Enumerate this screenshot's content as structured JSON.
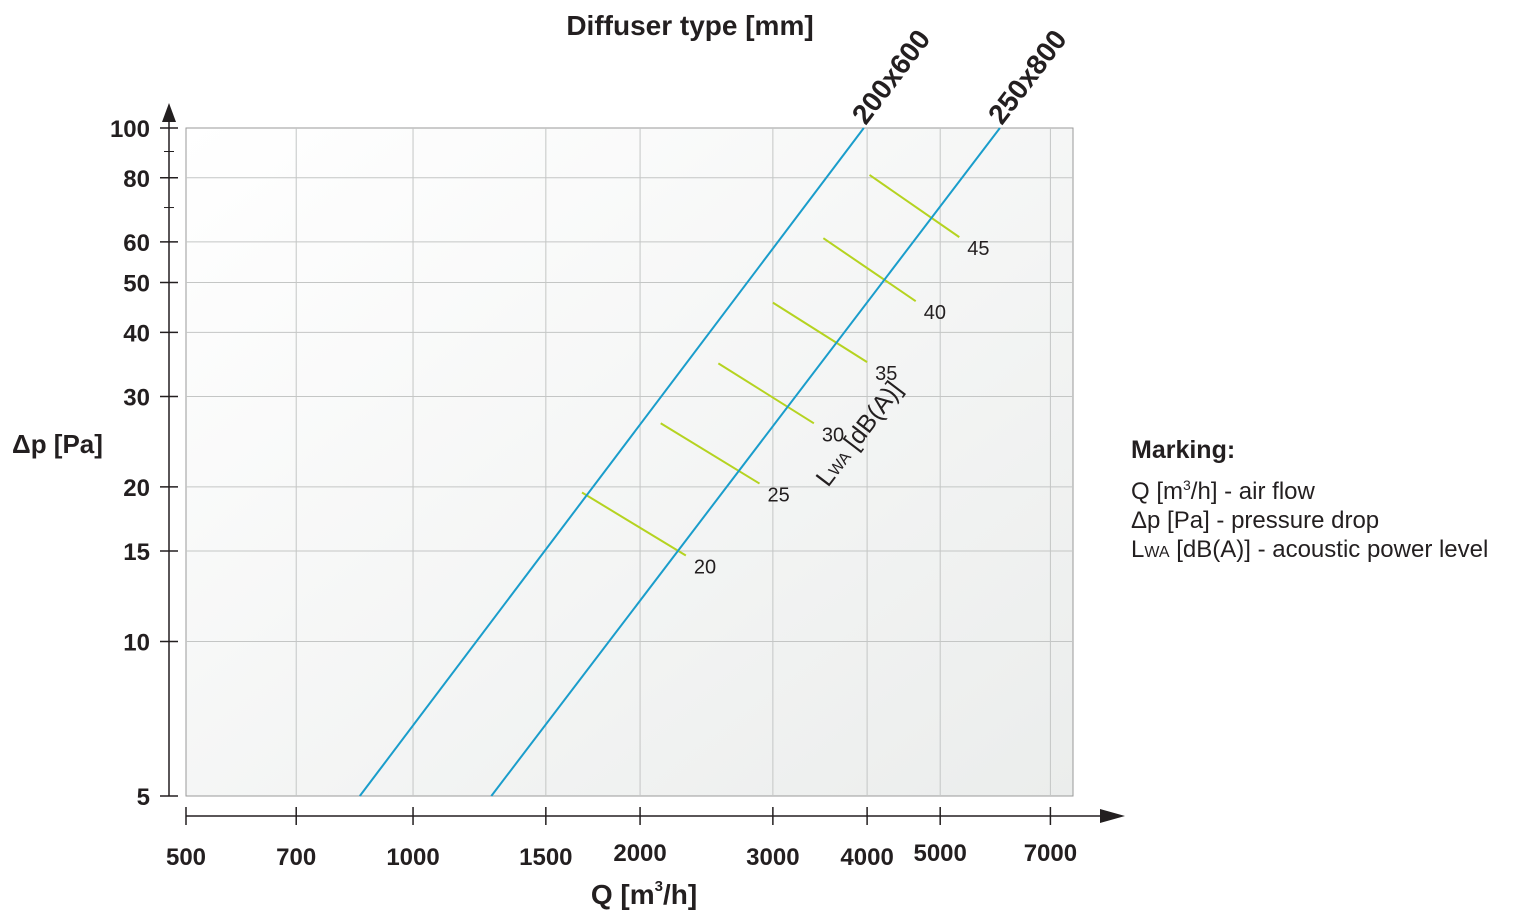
{
  "chart_data": {
    "type": "line",
    "title": "Diffuser type [mm]",
    "xlabel": {
      "main": "Q [m",
      "sup": "3",
      "tail": "/h]"
    },
    "ylabel": "Δp [Pa]",
    "x_scale": "log",
    "y_scale": "log",
    "xlim": [
      500,
      7500
    ],
    "ylim": [
      5,
      100
    ],
    "x_ticks": [
      500,
      700,
      1000,
      1500,
      2000,
      3000,
      4000,
      5000,
      7000
    ],
    "x_tick_labels": [
      "500",
      "700",
      "1000",
      "1500",
      "2000",
      "3000",
      "4000",
      "5000",
      "7000"
    ],
    "y_ticks": [
      5,
      10,
      15,
      20,
      30,
      40,
      50,
      60,
      80,
      100
    ],
    "y_tick_labels": [
      "5",
      "10",
      "15",
      "20",
      "30",
      "40",
      "50",
      "60",
      "80",
      "100"
    ],
    "grid": true,
    "series": [
      {
        "name": "200x600",
        "x": [
          850,
          3960
        ],
        "y": [
          5,
          100
        ],
        "color": "#1a9dcb"
      },
      {
        "name": "250x800",
        "x": [
          1270,
          6000
        ],
        "y": [
          5,
          100
        ],
        "color": "#1a9dcb"
      }
    ],
    "noise_label": {
      "main": "L",
      "sub": "WA",
      "tail": " [dB(A)]"
    },
    "noise_lines": [
      {
        "label": "20",
        "from": [
          1675,
          19.5
        ],
        "to": [
          2300,
          14.7
        ]
      },
      {
        "label": "25",
        "from": [
          2130,
          26.6
        ],
        "to": [
          2880,
          20.3
        ]
      },
      {
        "label": "30",
        "from": [
          2540,
          34.8
        ],
        "to": [
          3400,
          26.6
        ]
      },
      {
        "label": "35",
        "from": [
          3000,
          45.7
        ],
        "to": [
          4000,
          35.0
        ]
      },
      {
        "label": "40",
        "from": [
          3500,
          61.0
        ],
        "to": [
          4640,
          46.0
        ]
      },
      {
        "label": "45",
        "from": [
          4030,
          81.0
        ],
        "to": [
          5300,
          61.3
        ]
      }
    ],
    "noise_line_color": "#b5d320",
    "curve_color": "#1a9dcb"
  },
  "marking": {
    "title": "Marking:",
    "items": [
      {
        "main": "Q [m",
        "sup": "3",
        "tail": "/h] - air flow"
      },
      {
        "main": "Δp [Pa] - pressure drop"
      },
      {
        "main": "L",
        "sub": "WA",
        "tail": " [dB(A)] - acoustic power level"
      }
    ]
  }
}
